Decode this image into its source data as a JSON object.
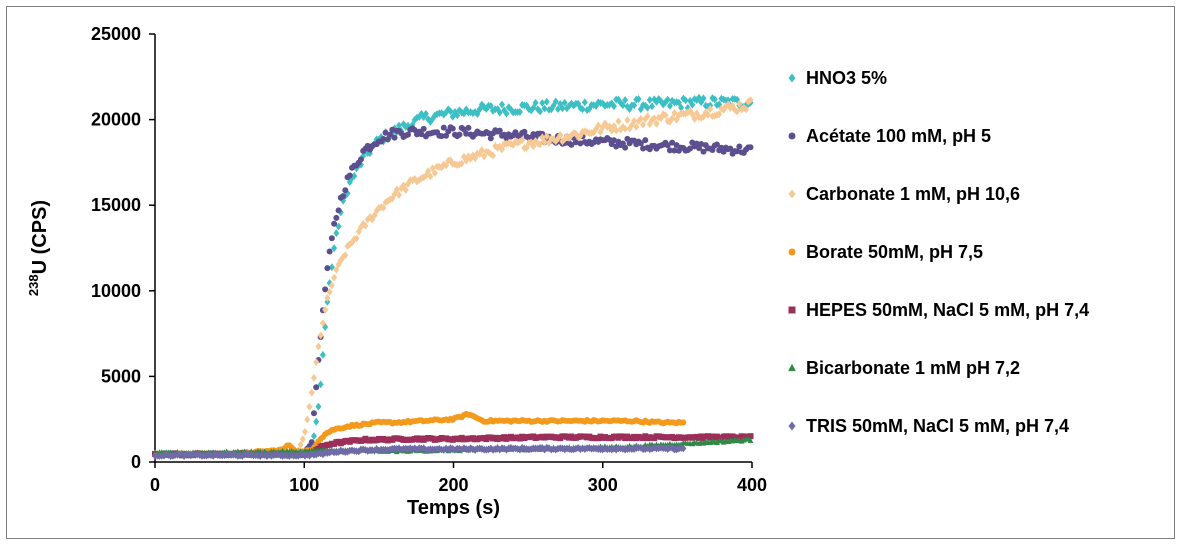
{
  "chart_data": {
    "type": "scatter",
    "xlabel": "Temps (s)",
    "ylabel_sup": "238",
    "ylabel_main": "U (CPS)",
    "xlim": [
      0,
      400
    ],
    "ylim": [
      0,
      25000
    ],
    "xticks": [
      0,
      100,
      200,
      300,
      400
    ],
    "yticks": [
      0,
      5000,
      10000,
      15000,
      20000,
      25000
    ],
    "grid": false,
    "legend_position": "right",
    "series": [
      {
        "name": "HNO3 5%",
        "color": "#3dbfc4",
        "marker": "diamond",
        "x": [
          0,
          50,
          100,
          105,
          110,
          115,
          120,
          125,
          130,
          140,
          150,
          160,
          170,
          180,
          200,
          220,
          250,
          280,
          300,
          320,
          340,
          360,
          380,
          400
        ],
        "y": [
          450,
          450,
          450,
          600,
          3500,
          9000,
          12500,
          14800,
          16200,
          17800,
          18800,
          19300,
          19700,
          20100,
          20400,
          20600,
          20700,
          20800,
          20900,
          20900,
          20900,
          21000,
          21000,
          21000
        ]
      },
      {
        "name": "Acétate 100 mM, pH 5",
        "color": "#5c4f8f",
        "marker": "circle",
        "x": [
          0,
          50,
          100,
          105,
          110,
          115,
          120,
          125,
          130,
          140,
          150,
          160,
          170,
          180,
          200,
          220,
          240,
          260,
          280,
          300,
          320,
          340,
          360,
          380,
          400
        ],
        "y": [
          450,
          450,
          450,
          1200,
          6500,
          11000,
          13800,
          15500,
          16700,
          18200,
          18900,
          19200,
          19300,
          19300,
          19300,
          19200,
          19100,
          18900,
          18800,
          18700,
          18600,
          18500,
          18400,
          18300,
          18200
        ]
      },
      {
        "name": "Carbonate 1 mM, pH 10,6",
        "color": "#f6c994",
        "marker": "diamond",
        "x": [
          0,
          50,
          95,
          100,
          105,
          110,
          115,
          120,
          125,
          130,
          140,
          150,
          160,
          170,
          180,
          200,
          220,
          240,
          260,
          280,
          300,
          320,
          340,
          360,
          380,
          400
        ],
        "y": [
          450,
          450,
          450,
          1500,
          4000,
          7000,
          9300,
          10800,
          11800,
          12600,
          13800,
          14800,
          15600,
          16200,
          16700,
          17500,
          18000,
          18500,
          18800,
          19100,
          19500,
          19800,
          20100,
          20300,
          20600,
          20900
        ]
      },
      {
        "name": "Borate 50mM, pH 7,5",
        "color": "#f39a1c",
        "marker": "circle",
        "x": [
          0,
          50,
          85,
          90,
          95,
          100,
          105,
          110,
          115,
          120,
          130,
          140,
          150,
          160,
          180,
          200,
          210,
          220,
          240,
          260,
          280,
          300,
          320,
          340,
          355
        ],
        "y": [
          450,
          450,
          700,
          1000,
          600,
          600,
          700,
          1300,
          1700,
          1900,
          2100,
          2200,
          2300,
          2300,
          2400,
          2500,
          2800,
          2400,
          2400,
          2400,
          2400,
          2400,
          2400,
          2300,
          2300
        ]
      },
      {
        "name": "HEPES 50mM, NaCl 5 mM, pH 7,4",
        "color": "#9b2f5a",
        "marker": "square",
        "x": [
          0,
          50,
          100,
          105,
          110,
          115,
          120,
          130,
          140,
          150,
          170,
          200,
          230,
          260,
          300,
          340,
          370,
          400
        ],
        "y": [
          450,
          450,
          450,
          550,
          800,
          1000,
          1100,
          1200,
          1300,
          1300,
          1350,
          1350,
          1400,
          1450,
          1450,
          1450,
          1450,
          1450
        ]
      },
      {
        "name": "Bicarbonate 1 mM pH 7,2",
        "color": "#2f8a45",
        "marker": "triangle",
        "x": [
          0,
          50,
          100,
          110,
          120,
          140,
          160,
          200,
          240,
          280,
          300,
          320,
          340,
          360,
          380,
          400
        ],
        "y": [
          500,
          550,
          600,
          650,
          650,
          650,
          650,
          700,
          750,
          800,
          850,
          900,
          1000,
          1100,
          1200,
          1300
        ]
      },
      {
        "name": "TRIS 50mM, NaCl 5 mM, pH 7,4",
        "color": "#6e6ba6",
        "marker": "diamond",
        "x": [
          0,
          50,
          100,
          110,
          120,
          130,
          140,
          160,
          200,
          250,
          300,
          355
        ],
        "y": [
          400,
          400,
          400,
          450,
          600,
          650,
          700,
          750,
          750,
          780,
          780,
          780
        ]
      }
    ]
  }
}
